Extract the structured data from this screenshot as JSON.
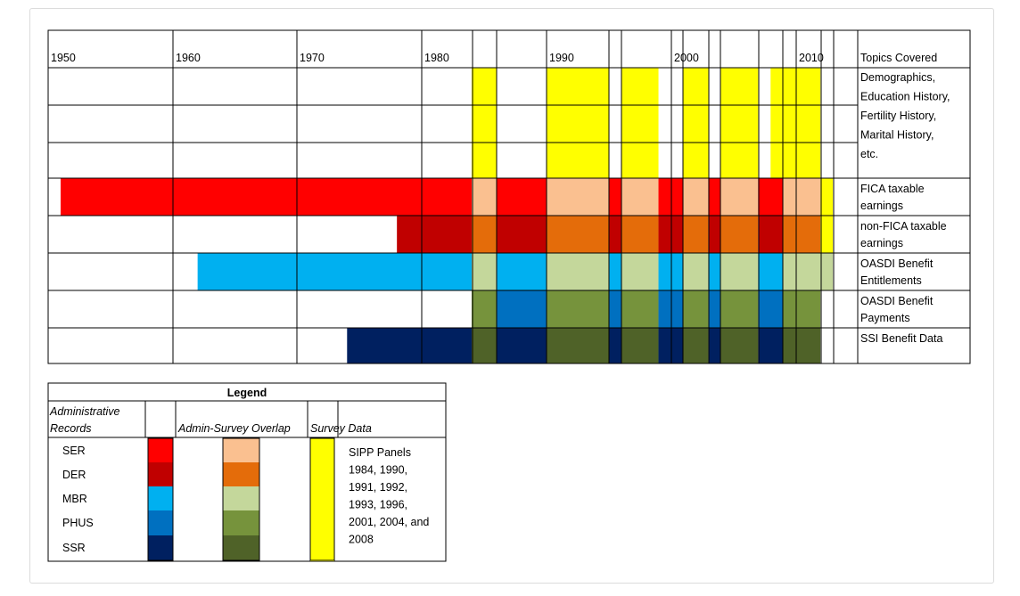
{
  "chart_data": {
    "type": "timeline",
    "decade_labels": [
      "1950",
      "1960",
      "1970",
      "1980",
      "1990",
      "2000",
      "2010"
    ],
    "topics_header": "Topics Covered",
    "survey_row_topics": [
      "Demographics,",
      "Education History,",
      "Fertility History,",
      "Marital History,",
      "etc."
    ],
    "rows": [
      {
        "id": "survey",
        "topic_lines": [],
        "segments": [
          {
            "start": 1984,
            "end": 1986,
            "kind": "survey"
          },
          {
            "start": 1990,
            "end": 1995,
            "kind": "survey"
          },
          {
            "start": 1996,
            "end": 1999,
            "kind": "survey"
          },
          {
            "start": 2001,
            "end": 2003,
            "kind": "survey"
          },
          {
            "start": 2004,
            "end": 2007,
            "kind": "survey"
          },
          {
            "start": 2008,
            "end": 2009,
            "kind": "survey"
          },
          {
            "start": 2009,
            "end": 2012,
            "kind": "survey"
          }
        ]
      },
      {
        "id": "ser",
        "topic_lines": [
          "FICA taxable",
          "earnings"
        ],
        "segments": [
          {
            "start": 1951,
            "end": 1984,
            "kind": "admin"
          },
          {
            "start": 1984,
            "end": 1986,
            "kind": "overlap"
          },
          {
            "start": 1986,
            "end": 1990,
            "kind": "admin"
          },
          {
            "start": 1990,
            "end": 1995,
            "kind": "overlap"
          },
          {
            "start": 1995,
            "end": 1996,
            "kind": "admin"
          },
          {
            "start": 1996,
            "end": 1999,
            "kind": "overlap"
          },
          {
            "start": 1999,
            "end": 2001,
            "kind": "admin"
          },
          {
            "start": 2001,
            "end": 2003,
            "kind": "overlap"
          },
          {
            "start": 2003,
            "end": 2004,
            "kind": "admin"
          },
          {
            "start": 2004,
            "end": 2007,
            "kind": "overlap"
          },
          {
            "start": 2007,
            "end": 2009,
            "kind": "admin"
          },
          {
            "start": 2009,
            "end": 2012,
            "kind": "overlap"
          },
          {
            "start": 2012,
            "end": 2013,
            "kind": "survey"
          }
        ]
      },
      {
        "id": "der",
        "topic_lines": [
          "non-FICA taxable",
          "earnings"
        ],
        "segments": [
          {
            "start": 1978,
            "end": 1984,
            "kind": "admin"
          },
          {
            "start": 1984,
            "end": 1986,
            "kind": "overlap"
          },
          {
            "start": 1986,
            "end": 1990,
            "kind": "admin"
          },
          {
            "start": 1990,
            "end": 1995,
            "kind": "overlap"
          },
          {
            "start": 1995,
            "end": 1996,
            "kind": "admin"
          },
          {
            "start": 1996,
            "end": 1999,
            "kind": "overlap"
          },
          {
            "start": 1999,
            "end": 2001,
            "kind": "admin"
          },
          {
            "start": 2001,
            "end": 2003,
            "kind": "overlap"
          },
          {
            "start": 2003,
            "end": 2004,
            "kind": "admin"
          },
          {
            "start": 2004,
            "end": 2007,
            "kind": "overlap"
          },
          {
            "start": 2007,
            "end": 2009,
            "kind": "admin"
          },
          {
            "start": 2009,
            "end": 2012,
            "kind": "overlap"
          },
          {
            "start": 2012,
            "end": 2013,
            "kind": "survey"
          }
        ]
      },
      {
        "id": "mbr",
        "topic_lines": [
          "OASDI Benefit",
          "Entitlements"
        ],
        "segments": [
          {
            "start": 1962,
            "end": 1984,
            "kind": "admin"
          },
          {
            "start": 1984,
            "end": 1986,
            "kind": "overlap"
          },
          {
            "start": 1986,
            "end": 1990,
            "kind": "admin"
          },
          {
            "start": 1990,
            "end": 1995,
            "kind": "overlap"
          },
          {
            "start": 1995,
            "end": 1996,
            "kind": "admin"
          },
          {
            "start": 1996,
            "end": 1999,
            "kind": "overlap"
          },
          {
            "start": 1999,
            "end": 2001,
            "kind": "admin"
          },
          {
            "start": 2001,
            "end": 2003,
            "kind": "overlap"
          },
          {
            "start": 2003,
            "end": 2004,
            "kind": "admin"
          },
          {
            "start": 2004,
            "end": 2007,
            "kind": "overlap"
          },
          {
            "start": 2007,
            "end": 2009,
            "kind": "admin"
          },
          {
            "start": 2009,
            "end": 2013,
            "kind": "overlap"
          }
        ]
      },
      {
        "id": "phus",
        "topic_lines": [
          "OASDI Benefit",
          "Payments"
        ],
        "segments": [
          {
            "start": 1984,
            "end": 1986,
            "kind": "overlap"
          },
          {
            "start": 1986,
            "end": 1990,
            "kind": "admin"
          },
          {
            "start": 1990,
            "end": 1995,
            "kind": "overlap"
          },
          {
            "start": 1995,
            "end": 1996,
            "kind": "admin"
          },
          {
            "start": 1996,
            "end": 1999,
            "kind": "overlap"
          },
          {
            "start": 1999,
            "end": 2001,
            "kind": "admin"
          },
          {
            "start": 2001,
            "end": 2003,
            "kind": "overlap"
          },
          {
            "start": 2003,
            "end": 2004,
            "kind": "admin"
          },
          {
            "start": 2004,
            "end": 2007,
            "kind": "overlap"
          },
          {
            "start": 2007,
            "end": 2009,
            "kind": "admin"
          },
          {
            "start": 2009,
            "end": 2012,
            "kind": "overlap"
          }
        ]
      },
      {
        "id": "ssr",
        "topic_lines": [
          "SSI Benefit Data"
        ],
        "segments": [
          {
            "start": 1974,
            "end": 1984,
            "kind": "admin"
          },
          {
            "start": 1984,
            "end": 1986,
            "kind": "overlap"
          },
          {
            "start": 1986,
            "end": 1990,
            "kind": "admin"
          },
          {
            "start": 1990,
            "end": 1995,
            "kind": "overlap"
          },
          {
            "start": 1995,
            "end": 1996,
            "kind": "admin"
          },
          {
            "start": 1996,
            "end": 1999,
            "kind": "overlap"
          },
          {
            "start": 1999,
            "end": 2001,
            "kind": "admin"
          },
          {
            "start": 2001,
            "end": 2003,
            "kind": "overlap"
          },
          {
            "start": 2003,
            "end": 2004,
            "kind": "admin"
          },
          {
            "start": 2004,
            "end": 2007,
            "kind": "overlap"
          },
          {
            "start": 2007,
            "end": 2009,
            "kind": "admin"
          },
          {
            "start": 2009,
            "end": 2012,
            "kind": "overlap"
          }
        ]
      }
    ],
    "colors": {
      "survey": "#ffff00",
      "grid": "#000000",
      "ser": {
        "admin": "#ff0000",
        "overlap": "#fac090"
      },
      "der": {
        "admin": "#c00000",
        "overlap": "#e46c0a"
      },
      "mbr": {
        "admin": "#00b0f0",
        "overlap": "#c4d79b"
      },
      "phus": {
        "admin": "#0070c0",
        "overlap": "#76933c"
      },
      "ssr": {
        "admin": "#002060",
        "overlap": "#4f6228"
      }
    }
  },
  "legend": {
    "title": "Legend",
    "col_admin_line1": "Administrative",
    "col_admin_line2": "Records",
    "col_overlap": "Admin-Survey Overlap",
    "col_survey": "Survey Data",
    "record_labels": [
      "SER",
      "DER",
      "MBR",
      "PHUS",
      "SSR"
    ],
    "survey_note_lines": [
      "SIPP Panels",
      "1984, 1990,",
      "1991, 1992,",
      "1993, 1996,",
      "2001, 2004, and",
      "2008"
    ]
  }
}
